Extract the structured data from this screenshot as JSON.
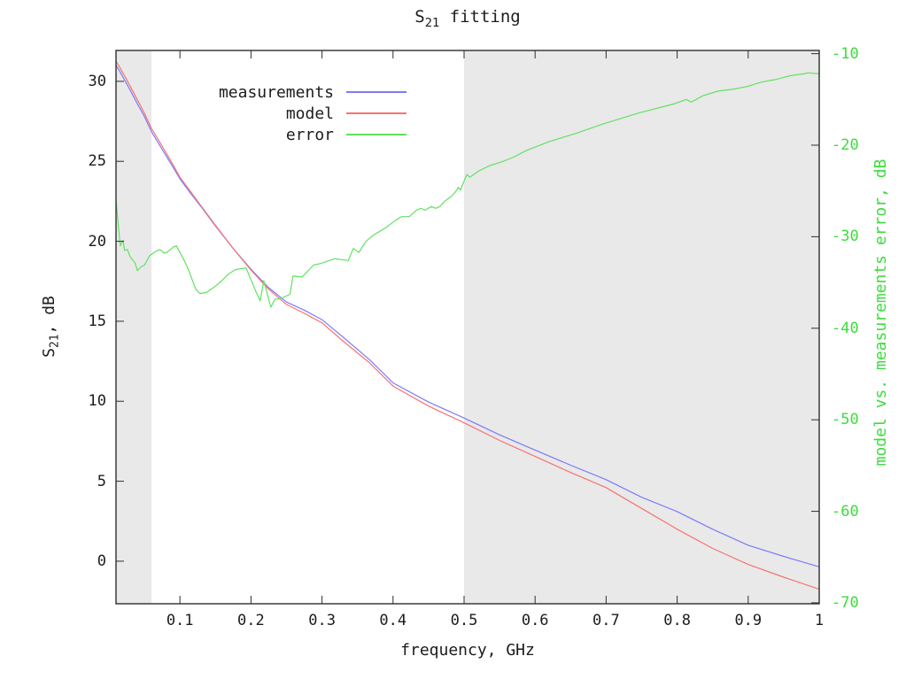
{
  "title_parts": {
    "prefix": "S",
    "sub": "21",
    "suffix": " fitting"
  },
  "left_axis_title_parts": {
    "prefix": "S",
    "sub": "21",
    "suffix": ", dB"
  },
  "chart_data": {
    "type": "line",
    "title": "S21 fitting",
    "xlabel": "frequency, GHz",
    "ylabel_left": "S21, dB",
    "ylabel_right": "model vs. measurements error, dB",
    "xlim": [
      0.01,
      1.0
    ],
    "ylim_left": [
      -2.66,
      31.93
    ],
    "ylim_right": [
      -70.1,
      -9.65
    ],
    "xticks": [
      0.1,
      0.2,
      0.3,
      0.4,
      0.5,
      0.6,
      0.7,
      0.8,
      0.9,
      1
    ],
    "xtick_labels": [
      "0.1",
      "0.2",
      "0.3",
      "0.4",
      "0.5",
      "0.6",
      "0.7",
      "0.8",
      "0.9",
      "1"
    ],
    "yticks_left": [
      0,
      5,
      10,
      15,
      20,
      25,
      30
    ],
    "ytick_left_labels": [
      "0",
      "5",
      "10",
      "15",
      "20",
      "25",
      "30"
    ],
    "yticks_right": [
      -70,
      -60,
      -50,
      -40,
      -30,
      -20,
      -10
    ],
    "ytick_right_labels": [
      "-70",
      "-60",
      "-50",
      "-40",
      "-30",
      "-20",
      "-10"
    ],
    "grid": false,
    "legend_position": "top-left-inside",
    "shaded_bands": [
      [
        0.01,
        0.06
      ],
      [
        0.5,
        1.0
      ]
    ],
    "band_color": "#e9e9e9",
    "border_color": "#2e2e2e",
    "axis_colors": {
      "left": "#1c1c1c",
      "right": "#3edc3e"
    },
    "series": [
      {
        "name": "measurements",
        "color": "#7b7bf8",
        "axis": "left",
        "points": [
          [
            0.01,
            31.0
          ],
          [
            0.015,
            30.65
          ],
          [
            0.02,
            30.25
          ],
          [
            0.025,
            29.85
          ],
          [
            0.03,
            29.45
          ],
          [
            0.04,
            28.6
          ],
          [
            0.05,
            27.8
          ],
          [
            0.06,
            26.85
          ],
          [
            0.075,
            25.75
          ],
          [
            0.09,
            24.65
          ],
          [
            0.1,
            23.9
          ],
          [
            0.115,
            23.0
          ],
          [
            0.13,
            22.15
          ],
          [
            0.15,
            20.95
          ],
          [
            0.175,
            19.55
          ],
          [
            0.2,
            18.25
          ],
          [
            0.225,
            17.1
          ],
          [
            0.25,
            16.2
          ],
          [
            0.275,
            15.7
          ],
          [
            0.3,
            15.1
          ],
          [
            0.33,
            14.0
          ],
          [
            0.367,
            12.6
          ],
          [
            0.4,
            11.15
          ],
          [
            0.45,
            9.95
          ],
          [
            0.5,
            8.95
          ],
          [
            0.55,
            7.9
          ],
          [
            0.6,
            6.95
          ],
          [
            0.65,
            6.0
          ],
          [
            0.7,
            5.1
          ],
          [
            0.75,
            4.0
          ],
          [
            0.8,
            3.1
          ],
          [
            0.85,
            2.0
          ],
          [
            0.9,
            1.0
          ],
          [
            0.95,
            0.3
          ],
          [
            1.0,
            -0.35
          ]
        ]
      },
      {
        "name": "model",
        "color": "#f87272",
        "axis": "left",
        "points": [
          [
            0.01,
            31.25
          ],
          [
            0.015,
            30.9
          ],
          [
            0.02,
            30.5
          ],
          [
            0.025,
            30.1
          ],
          [
            0.03,
            29.7
          ],
          [
            0.04,
            28.85
          ],
          [
            0.05,
            28.0
          ],
          [
            0.06,
            27.05
          ],
          [
            0.075,
            25.95
          ],
          [
            0.09,
            24.8
          ],
          [
            0.1,
            24.0
          ],
          [
            0.115,
            23.1
          ],
          [
            0.13,
            22.2
          ],
          [
            0.15,
            21.0
          ],
          [
            0.175,
            19.55
          ],
          [
            0.2,
            18.2
          ],
          [
            0.225,
            17.0
          ],
          [
            0.25,
            16.05
          ],
          [
            0.275,
            15.5
          ],
          [
            0.3,
            14.9
          ],
          [
            0.33,
            13.75
          ],
          [
            0.367,
            12.4
          ],
          [
            0.4,
            10.95
          ],
          [
            0.45,
            9.7
          ],
          [
            0.5,
            8.65
          ],
          [
            0.55,
            7.55
          ],
          [
            0.6,
            6.55
          ],
          [
            0.65,
            5.55
          ],
          [
            0.7,
            4.6
          ],
          [
            0.75,
            3.3
          ],
          [
            0.8,
            2.0
          ],
          [
            0.85,
            0.8
          ],
          [
            0.9,
            -0.2
          ],
          [
            0.95,
            -1.0
          ],
          [
            1.0,
            -1.75
          ]
        ]
      },
      {
        "name": "error",
        "color": "#61e261",
        "axis": "right",
        "points": [
          [
            0.01,
            -26.0
          ],
          [
            0.013,
            -28.5
          ],
          [
            0.016,
            -31.0
          ],
          [
            0.02,
            -30.4
          ],
          [
            0.022,
            -31.5
          ],
          [
            0.026,
            -31.4
          ],
          [
            0.03,
            -32.2
          ],
          [
            0.037,
            -32.9
          ],
          [
            0.04,
            -33.7
          ],
          [
            0.045,
            -33.3
          ],
          [
            0.05,
            -33.1
          ],
          [
            0.057,
            -32.1
          ],
          [
            0.066,
            -31.6
          ],
          [
            0.072,
            -31.4
          ],
          [
            0.078,
            -31.8
          ],
          [
            0.082,
            -31.7
          ],
          [
            0.091,
            -31.1
          ],
          [
            0.095,
            -31.0
          ],
          [
            0.106,
            -32.6
          ],
          [
            0.112,
            -33.6
          ],
          [
            0.122,
            -35.7
          ],
          [
            0.128,
            -36.2
          ],
          [
            0.137,
            -36.1
          ],
          [
            0.15,
            -35.4
          ],
          [
            0.159,
            -34.8
          ],
          [
            0.168,
            -34.1
          ],
          [
            0.178,
            -33.6
          ],
          [
            0.193,
            -33.4
          ],
          [
            0.207,
            -36.0
          ],
          [
            0.213,
            -37.0
          ],
          [
            0.218,
            -34.8
          ],
          [
            0.228,
            -37.7
          ],
          [
            0.234,
            -36.8
          ],
          [
            0.24,
            -36.8
          ],
          [
            0.255,
            -36.3
          ],
          [
            0.259,
            -34.3
          ],
          [
            0.272,
            -34.4
          ],
          [
            0.288,
            -33.1
          ],
          [
            0.299,
            -32.9
          ],
          [
            0.318,
            -32.4
          ],
          [
            0.337,
            -32.6
          ],
          [
            0.344,
            -31.3
          ],
          [
            0.352,
            -31.7
          ],
          [
            0.362,
            -30.5
          ],
          [
            0.371,
            -29.9
          ],
          [
            0.377,
            -29.6
          ],
          [
            0.39,
            -29.0
          ],
          [
            0.402,
            -28.3
          ],
          [
            0.412,
            -27.8
          ],
          [
            0.423,
            -27.8
          ],
          [
            0.433,
            -27.1
          ],
          [
            0.439,
            -26.9
          ],
          [
            0.445,
            -27.1
          ],
          [
            0.454,
            -26.7
          ],
          [
            0.46,
            -26.9
          ],
          [
            0.466,
            -26.7
          ],
          [
            0.473,
            -26.1
          ],
          [
            0.482,
            -25.6
          ],
          [
            0.488,
            -25.1
          ],
          [
            0.492,
            -24.6
          ],
          [
            0.495,
            -24.9
          ],
          [
            0.498,
            -24.3
          ],
          [
            0.504,
            -23.2
          ],
          [
            0.508,
            -23.5
          ],
          [
            0.521,
            -22.8
          ],
          [
            0.537,
            -22.2
          ],
          [
            0.554,
            -21.8
          ],
          [
            0.57,
            -21.3
          ],
          [
            0.587,
            -20.6
          ],
          [
            0.62,
            -19.6
          ],
          [
            0.658,
            -18.7
          ],
          [
            0.695,
            -17.7
          ],
          [
            0.745,
            -16.5
          ],
          [
            0.795,
            -15.5
          ],
          [
            0.813,
            -15.0
          ],
          [
            0.82,
            -15.3
          ],
          [
            0.836,
            -14.6
          ],
          [
            0.857,
            -14.1
          ],
          [
            0.878,
            -13.9
          ],
          [
            0.898,
            -13.6
          ],
          [
            0.919,
            -13.1
          ],
          [
            0.94,
            -12.8
          ],
          [
            0.96,
            -12.4
          ],
          [
            0.978,
            -12.2
          ],
          [
            0.984,
            -12.1
          ],
          [
            1.0,
            -12.2
          ]
        ]
      }
    ]
  }
}
